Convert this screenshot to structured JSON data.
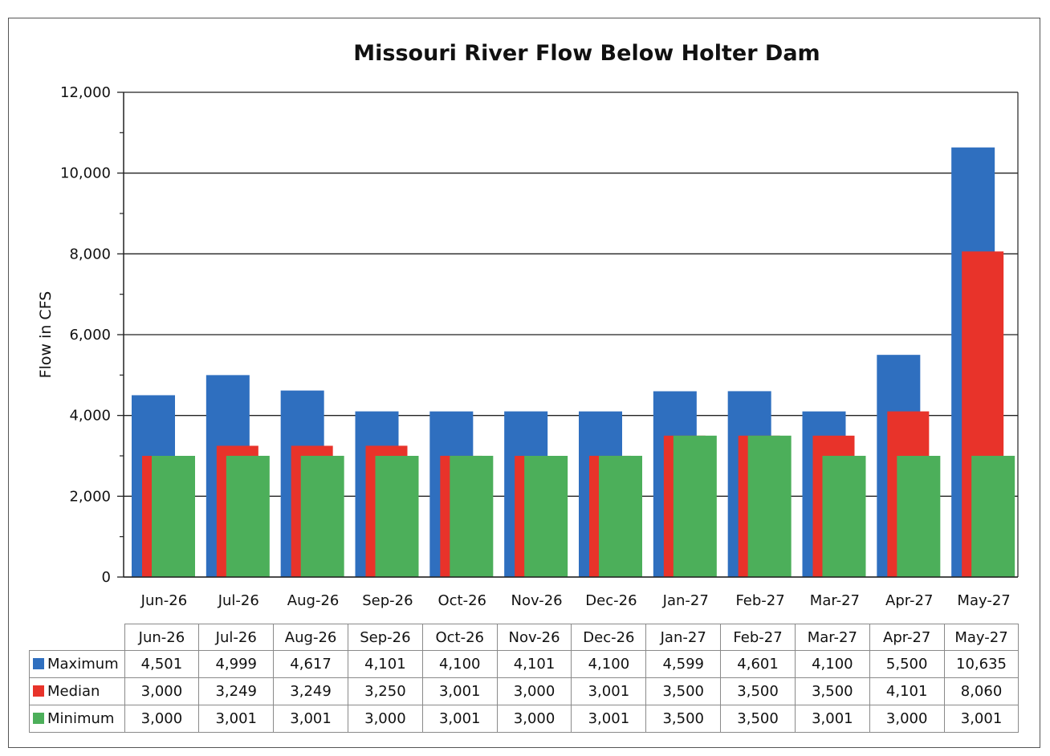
{
  "chart_data": {
    "type": "bar",
    "title": "Missouri River Flow Below Holter Dam",
    "ylabel": "Flow in CFS",
    "xlabel": "",
    "ylim": [
      0,
      12000
    ],
    "yticks": [
      "0",
      "2,000",
      "4,000",
      "6,000",
      "8,000",
      "10,000",
      "12,000"
    ],
    "grid": "horizontal major gridlines",
    "categories": [
      "Jun-26",
      "Jul-26",
      "Aug-26",
      "Sep-26",
      "Oct-26",
      "Nov-26",
      "Dec-26",
      "Jan-27",
      "Feb-27",
      "Mar-27",
      "Apr-27",
      "May-27"
    ],
    "series": [
      {
        "name": "Maximum",
        "color": "#2f6fbf",
        "values": [
          4501,
          4999,
          4617,
          4101,
          4100,
          4101,
          4100,
          4599,
          4601,
          4100,
          5500,
          10635
        ],
        "labels": [
          "4,501",
          "4,999",
          "4,617",
          "4,101",
          "4,100",
          "4,101",
          "4,100",
          "4,599",
          "4,601",
          "4,100",
          "5,500",
          "10,635"
        ]
      },
      {
        "name": "Median",
        "color": "#e8332a",
        "values": [
          3000,
          3249,
          3249,
          3250,
          3001,
          3000,
          3001,
          3500,
          3500,
          3500,
          4101,
          8060
        ],
        "labels": [
          "3,000",
          "3,249",
          "3,249",
          "3,250",
          "3,001",
          "3,000",
          "3,001",
          "3,500",
          "3,500",
          "3,500",
          "4,101",
          "8,060"
        ]
      },
      {
        "name": "Minimum",
        "color": "#4caf5a",
        "values": [
          3000,
          3001,
          3001,
          3000,
          3001,
          3000,
          3001,
          3500,
          3500,
          3001,
          3000,
          3001
        ],
        "labels": [
          "3,000",
          "3,001",
          "3,001",
          "3,000",
          "3,001",
          "3,000",
          "3,001",
          "3,500",
          "3,500",
          "3,001",
          "3,000",
          "3,001"
        ]
      }
    ],
    "legend": "data table below chart"
  }
}
